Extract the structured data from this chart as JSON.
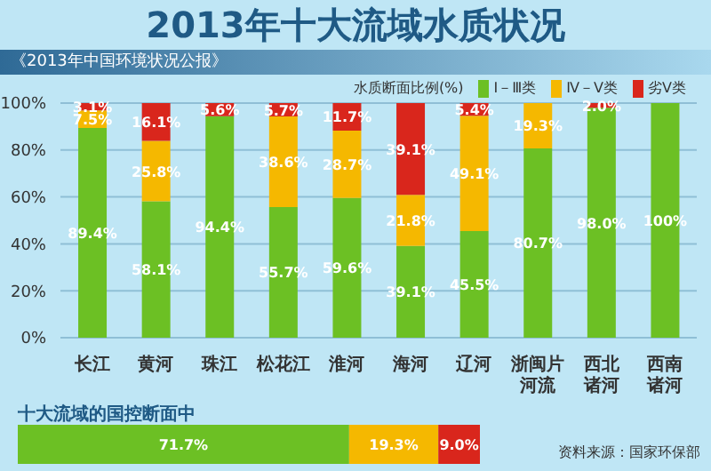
{
  "chart_data": [
    {
      "type": "bar",
      "title": "2013年十大流域水质状况",
      "subtitle": "《2013年中国环境状况公报》",
      "legend_title": "水质断面比例(%)",
      "legend": "top right",
      "stacked": true,
      "grid": "y",
      "categories": [
        "长江",
        "黄河",
        "珠江",
        "松花江",
        "淮河",
        "海河",
        "辽河",
        "浙闽片河流",
        "西北诸河",
        "西南诸河"
      ],
      "ylim": [
        0,
        100
      ],
      "yticks": [
        {
          "value": 0,
          "label": "0%"
        },
        {
          "value": 20,
          "label": "20%"
        },
        {
          "value": 40,
          "label": "40%"
        },
        {
          "value": 60,
          "label": "60%"
        },
        {
          "value": 80,
          "label": "80%"
        },
        {
          "value": 100,
          "label": "100%"
        }
      ],
      "series": [
        {
          "name": "Ⅰ－Ⅲ类",
          "color": "#6cc024",
          "values": [
            89.4,
            58.1,
            94.4,
            55.7,
            59.6,
            39.1,
            45.5,
            80.7,
            98.0,
            100
          ],
          "value_labels": [
            "89.4%",
            "58.1%",
            "94.4%",
            "55.7%",
            "59.6%",
            "39.1%",
            "45.5%",
            "80.7%",
            "98.0%",
            "100%"
          ]
        },
        {
          "name": "Ⅳ－Ⅴ类",
          "color": "#f5b800",
          "values": [
            7.5,
            25.8,
            null,
            38.6,
            28.7,
            21.8,
            49.1,
            19.3,
            null,
            null
          ],
          "value_labels": [
            "7.5%",
            "25.8%",
            null,
            "38.6%",
            "28.7%",
            "21.8%",
            "49.1%",
            "19.3%",
            null,
            null
          ]
        },
        {
          "name": "劣Ⅴ类",
          "color": "#d9261c",
          "values": [
            3.1,
            16.1,
            5.6,
            5.7,
            11.7,
            39.1,
            5.4,
            null,
            2.0,
            null
          ],
          "value_labels": [
            "3.1%",
            "16.1%",
            "5.6%",
            "5.7%",
            "11.7%",
            "39.1%",
            "5.4%",
            null,
            "2.0%",
            null
          ]
        }
      ]
    },
    {
      "type": "bar",
      "title": "十大流域的国控断面中",
      "orientation": "horizontal",
      "stacked": true,
      "tick_labels": false,
      "categories": [
        null
      ],
      "annotations": [
        "资料来源：国家环保部"
      ],
      "series": [
        {
          "color": "#6cc024",
          "values": [
            71.7
          ],
          "value_labels": [
            "71.7%"
          ]
        },
        {
          "color": "#f5b800",
          "values": [
            19.3
          ],
          "value_labels": [
            "19.3%"
          ]
        },
        {
          "color": "#d9261c",
          "values": [
            9.0
          ],
          "value_labels": [
            "9.0%"
          ]
        }
      ]
    }
  ]
}
